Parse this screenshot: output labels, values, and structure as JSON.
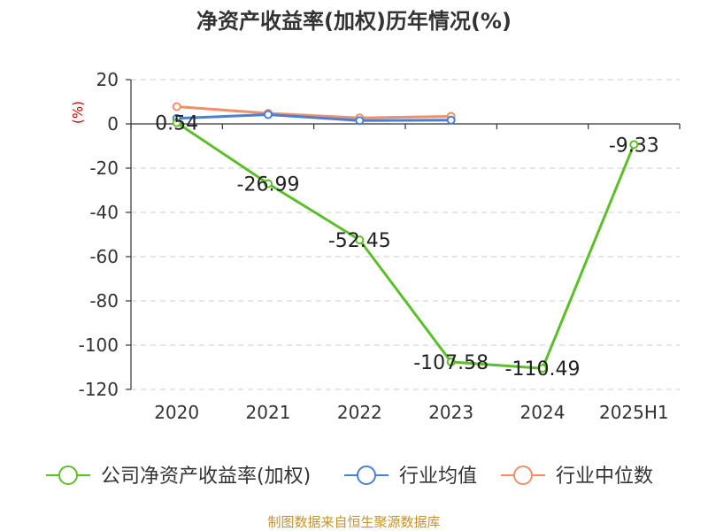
{
  "chart_data": {
    "type": "line",
    "title": "净资产收益率(加权)历年情况(%)",
    "ylabel": "(%)",
    "xlabel": "",
    "categories": [
      "2020",
      "2021",
      "2022",
      "2023",
      "2024",
      "2025H1"
    ],
    "ylim": [
      -120,
      20
    ],
    "yticks": [
      20,
      0,
      -20,
      -40,
      -60,
      -80,
      -100,
      -120
    ],
    "grid": true,
    "legend_position": "bottom",
    "series": [
      {
        "name": "公司净资产收益率(加权)",
        "color": "#5cbf2a",
        "values": [
          0.54,
          -26.99,
          -52.45,
          -107.58,
          -110.49,
          -9.33
        ],
        "labels": [
          "0.54",
          "-26.99",
          "-52.45",
          "-107.58",
          "-110.49",
          "-9.33"
        ]
      },
      {
        "name": "行业均值",
        "color": "#4a7fd4",
        "values": [
          2.5,
          4.2,
          1.5,
          1.7,
          null,
          null
        ]
      },
      {
        "name": "行业中位数",
        "color": "#f0906a",
        "values": [
          7.8,
          4.8,
          2.7,
          3.4,
          null,
          null
        ]
      }
    ]
  },
  "source_text": "制图数据来自恒生聚源数据库"
}
